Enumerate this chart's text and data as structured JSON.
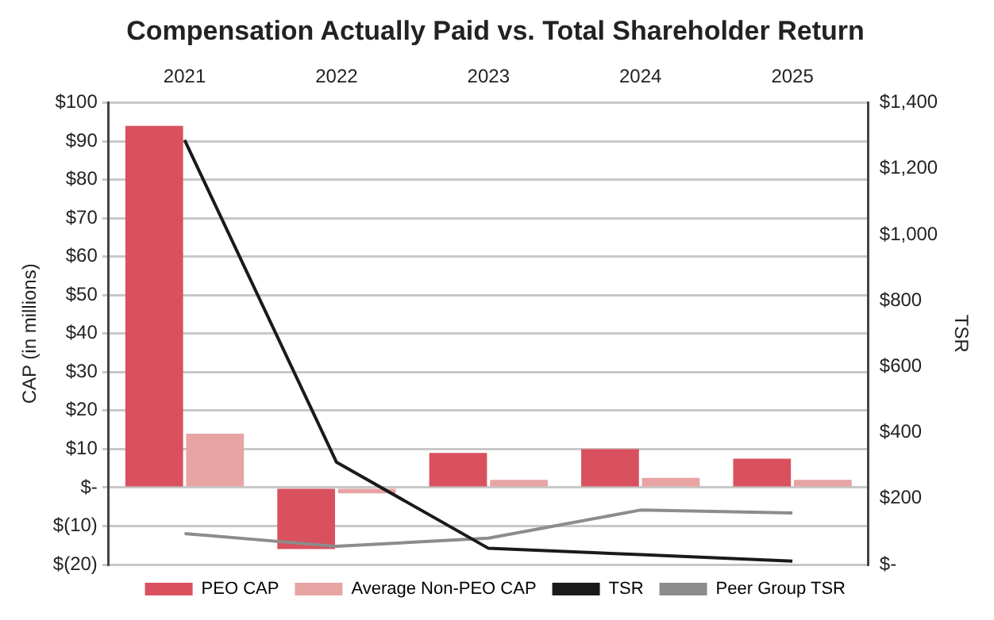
{
  "chart_data": {
    "type": "bar",
    "title": "Compensation Actually Paid vs. Total Shareholder Return",
    "categories": [
      "2021",
      "2022",
      "2023",
      "2024",
      "2025"
    ],
    "series": [
      {
        "name": "PEO CAP",
        "color": "#d9515e",
        "values": [
          94,
          -16,
          9,
          10,
          7.5
        ]
      },
      {
        "name": "Average Non-PEO CAP",
        "color": "#e8a3a3",
        "values": [
          14,
          -1.5,
          2,
          2.5,
          2
        ]
      },
      {
        "name": "TSR",
        "type": "line",
        "axis": "y2",
        "color": "#1a1a1a",
        "values": [
          1287,
          310,
          49,
          30,
          10
        ]
      },
      {
        "name": "Peer Group TSR",
        "type": "line",
        "axis": "y2",
        "color": "#8c8c8c",
        "values": [
          94,
          55,
          80,
          165,
          156
        ]
      }
    ],
    "ylabel": "CAP (in millions)",
    "y2label": "TSR",
    "ylim": [
      -20,
      100
    ],
    "yticks": [
      {
        "value": 100,
        "label": "$100"
      },
      {
        "value": 90,
        "label": "$90"
      },
      {
        "value": 80,
        "label": "$80"
      },
      {
        "value": 70,
        "label": "$70"
      },
      {
        "value": 60,
        "label": "$60"
      },
      {
        "value": 50,
        "label": "$50"
      },
      {
        "value": 40,
        "label": "$40"
      },
      {
        "value": 30,
        "label": "$30"
      },
      {
        "value": 20,
        "label": "$20"
      },
      {
        "value": 10,
        "label": "$10"
      },
      {
        "value": 0,
        "label": "$-"
      },
      {
        "value": -10,
        "label": "$(10)"
      },
      {
        "value": -20,
        "label": "$(20)"
      }
    ],
    "y2lim": [
      0,
      1400
    ],
    "y2ticks": [
      {
        "value": 0,
        "label": "$-"
      },
      {
        "value": 200,
        "label": "$200"
      },
      {
        "value": 400,
        "label": "$400"
      },
      {
        "value": 600,
        "label": "$600"
      },
      {
        "value": 800,
        "label": "$800"
      },
      {
        "value": 1000,
        "label": "$1,000"
      },
      {
        "value": 1200,
        "label": "$1,200"
      },
      {
        "value": 1400,
        "label": "$1,400"
      }
    ],
    "grid": "y",
    "legend": "bottom",
    "marker": "none",
    "line_style": "solid"
  }
}
